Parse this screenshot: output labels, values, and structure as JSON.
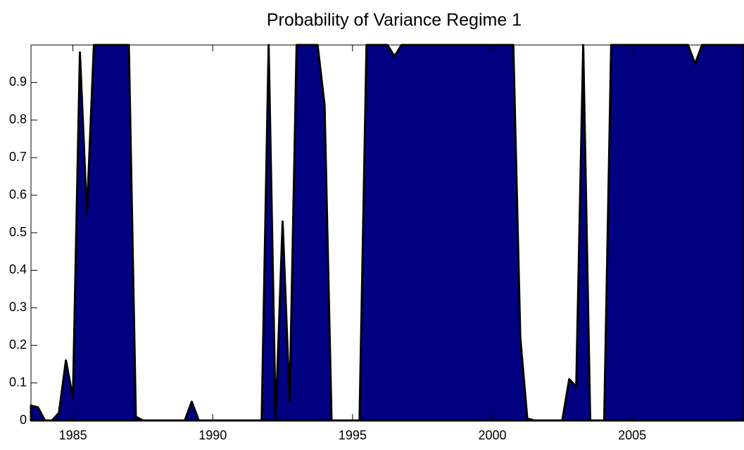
{
  "chart_data": {
    "type": "area",
    "title": "Probability of Variance Regime 1",
    "x": [
      1983.5,
      1983.75,
      1984,
      1984.25,
      1984.5,
      1984.75,
      1985,
      1985.25,
      1985.5,
      1985.75,
      1986,
      1986.25,
      1986.5,
      1986.75,
      1987,
      1987.25,
      1987.5,
      1987.75,
      1988,
      1988.25,
      1988.5,
      1988.75,
      1989,
      1989.25,
      1989.5,
      1989.75,
      1990,
      1990.25,
      1990.5,
      1990.75,
      1991,
      1991.25,
      1991.5,
      1991.75,
      1992,
      1992.25,
      1992.5,
      1992.75,
      1993,
      1993.25,
      1993.5,
      1993.75,
      1994,
      1994.25,
      1994.5,
      1994.75,
      1995,
      1995.25,
      1995.5,
      1995.75,
      1996,
      1996.25,
      1996.5,
      1996.75,
      1997,
      1997.25,
      1997.5,
      1997.75,
      1998,
      1998.25,
      1998.5,
      1998.75,
      1999,
      1999.25,
      1999.5,
      1999.75,
      2000,
      2000.25,
      2000.5,
      2000.75,
      2001,
      2001.25,
      2001.5,
      2001.75,
      2002,
      2002.25,
      2002.5,
      2002.75,
      2003,
      2003.25,
      2003.5,
      2003.75,
      2004,
      2004.25,
      2004.5,
      2004.75,
      2005,
      2005.25,
      2005.5,
      2005.75,
      2006,
      2006.25,
      2006.5,
      2006.75,
      2007,
      2007.25,
      2007.5,
      2007.75,
      2008,
      2008.25,
      2008.5,
      2008.75,
      2009
    ],
    "values": [
      0.04,
      0.035,
      0,
      0,
      0.02,
      0.16,
      0.06,
      0.98,
      0.55,
      1,
      1,
      1,
      1,
      1,
      1,
      0.01,
      0,
      0,
      0,
      0,
      0,
      0,
      0,
      0.05,
      0,
      0,
      0,
      0,
      0,
      0,
      0,
      0,
      0,
      0,
      1,
      0,
      0.53,
      0.05,
      1,
      1,
      1,
      1,
      0.84,
      0,
      0,
      0,
      0,
      0,
      1,
      1,
      1,
      1,
      0.97,
      1,
      1,
      1,
      1,
      1,
      1,
      1,
      1,
      1,
      1,
      1,
      1,
      1,
      1,
      1,
      1,
      1,
      0.22,
      0.005,
      0,
      0,
      0,
      0,
      0,
      0.11,
      0.09,
      1,
      0,
      0,
      0,
      1,
      1,
      1,
      1,
      1,
      1,
      1,
      1,
      1,
      1,
      1,
      1,
      0.95,
      1,
      1,
      1,
      1,
      1,
      1,
      1
    ],
    "color": "#000080",
    "line_color": "#000000",
    "xlim": [
      1983.5,
      2009
    ],
    "xticks": [
      1985,
      1990,
      1995,
      2000,
      2005
    ],
    "ylim": [
      0,
      1
    ],
    "yticks": [
      0,
      0.1,
      0.2,
      0.3,
      0.4,
      0.5,
      0.6,
      0.7,
      0.8,
      0.9
    ],
    "grid": false
  }
}
